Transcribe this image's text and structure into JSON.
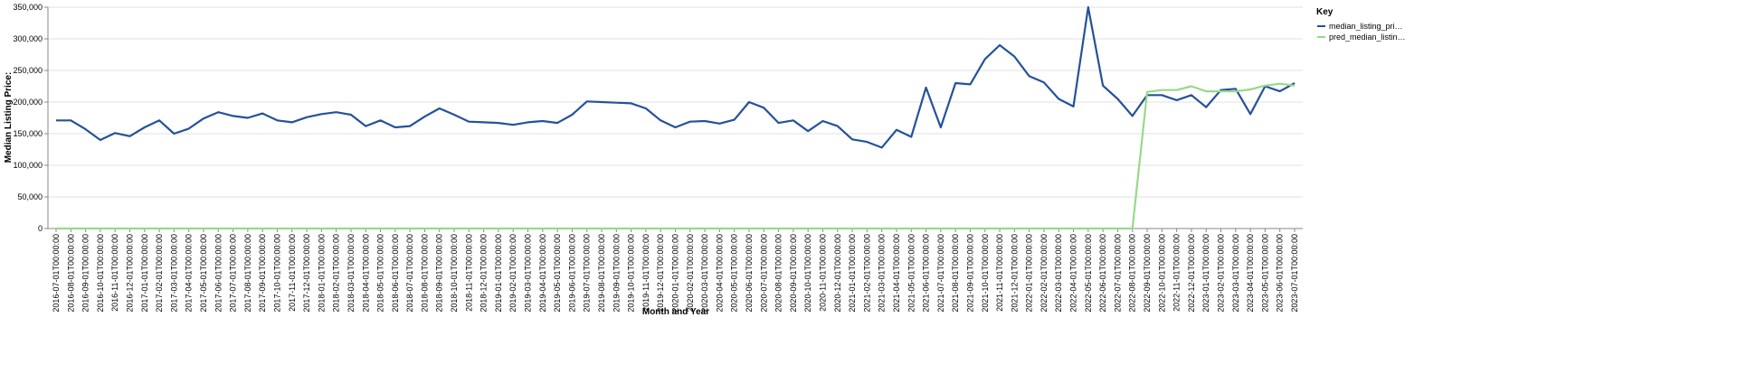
{
  "chart_data": {
    "type": "line",
    "x_label": "Month and Year",
    "y_label": "Median Listing Price:",
    "legend_title": "Key",
    "legend_position": "right",
    "grid": true,
    "categories": [
      "2016-07-01T00:00:00",
      "2016-08-01T00:00:00",
      "2016-09-01T00:00:00",
      "2016-10-01T00:00:00",
      "2016-11-01T00:00:00",
      "2016-12-01T00:00:00",
      "2017-01-01T00:00:00",
      "2017-02-01T00:00:00",
      "2017-03-01T00:00:00",
      "2017-04-01T00:00:00",
      "2017-05-01T00:00:00",
      "2017-06-01T00:00:00",
      "2017-07-01T00:00:00",
      "2017-08-01T00:00:00",
      "2017-09-01T00:00:00",
      "2017-10-01T00:00:00",
      "2017-11-01T00:00:00",
      "2017-12-01T00:00:00",
      "2018-01-01T00:00:00",
      "2018-02-01T00:00:00",
      "2018-03-01T00:00:00",
      "2018-04-01T00:00:00",
      "2018-05-01T00:00:00",
      "2018-06-01T00:00:00",
      "2018-07-01T00:00:00",
      "2018-08-01T00:00:00",
      "2018-09-01T00:00:00",
      "2018-10-01T00:00:00",
      "2018-11-01T00:00:00",
      "2018-12-01T00:00:00",
      "2019-01-01T00:00:00",
      "2019-02-01T00:00:00",
      "2019-03-01T00:00:00",
      "2019-04-01T00:00:00",
      "2019-05-01T00:00:00",
      "2019-06-01T00:00:00",
      "2019-07-01T00:00:00",
      "2019-08-01T00:00:00",
      "2019-09-01T00:00:00",
      "2019-10-01T00:00:00",
      "2019-11-01T00:00:00",
      "2019-12-01T00:00:00",
      "2020-01-01T00:00:00",
      "2020-02-01T00:00:00",
      "2020-03-01T00:00:00",
      "2020-04-01T00:00:00",
      "2020-05-01T00:00:00",
      "2020-06-01T00:00:00",
      "2020-07-01T00:00:00",
      "2020-08-01T00:00:00",
      "2020-09-01T00:00:00",
      "2020-10-01T00:00:00",
      "2020-11-01T00:00:00",
      "2020-12-01T00:00:00",
      "2021-01-01T00:00:00",
      "2021-02-01T00:00:00",
      "2021-03-01T00:00:00",
      "2021-04-01T00:00:00",
      "2021-05-01T00:00:00",
      "2021-06-01T00:00:00",
      "2021-07-01T00:00:00",
      "2021-08-01T00:00:00",
      "2021-09-01T00:00:00",
      "2021-10-01T00:00:00",
      "2021-11-01T00:00:00",
      "2021-12-01T00:00:00",
      "2022-01-01T00:00:00",
      "2022-02-01T00:00:00",
      "2022-03-01T00:00:00",
      "2022-04-01T00:00:00",
      "2022-05-01T00:00:00",
      "2022-06-01T00:00:00",
      "2022-07-01T00:00:00",
      "2022-08-01T00:00:00",
      "2022-09-01T00:00:00",
      "2022-10-01T00:00:00",
      "2022-11-01T00:00:00",
      "2022-12-01T00:00:00",
      "2023-01-01T00:00:00",
      "2023-02-01T00:00:00",
      "2023-03-01T00:00:00",
      "2023-04-01T00:00:00",
      "2023-05-01T00:00:00",
      "2023-06-01T00:00:00",
      "2023-07-01T00:00:00"
    ],
    "series": [
      {
        "name": "median_listing_pri…",
        "color": "#24529a",
        "values": [
          171000,
          171000,
          157000,
          140000,
          151000,
          146000,
          160000,
          171000,
          150000,
          158000,
          174000,
          184000,
          178000,
          175000,
          182000,
          171000,
          168000,
          176000,
          181000,
          184000,
          180000,
          162000,
          171000,
          160000,
          162000,
          177000,
          190000,
          180000,
          169000,
          168000,
          167000,
          164000,
          168000,
          170000,
          167000,
          180000,
          201000,
          200000,
          199000,
          198000,
          190000,
          171000,
          160000,
          169000,
          170000,
          166000,
          172000,
          200000,
          191000,
          167000,
          171000,
          154000,
          170000,
          162000,
          141000,
          137000,
          128000,
          156000,
          145000,
          223000,
          160000,
          230000,
          228000,
          268000,
          290000,
          272000,
          241000,
          231000,
          205000,
          193000,
          350000,
          226000,
          205000,
          178000,
          211000,
          211000,
          203000,
          211000,
          192000,
          219000,
          221000,
          181000,
          225000,
          217000,
          230000
        ]
      },
      {
        "name": "pred_median_listin…",
        "color": "#98d98a",
        "values": [
          0,
          0,
          0,
          0,
          0,
          0,
          0,
          0,
          0,
          0,
          0,
          0,
          0,
          0,
          0,
          0,
          0,
          0,
          0,
          0,
          0,
          0,
          0,
          0,
          0,
          0,
          0,
          0,
          0,
          0,
          0,
          0,
          0,
          0,
          0,
          0,
          0,
          0,
          0,
          0,
          0,
          0,
          0,
          0,
          0,
          0,
          0,
          0,
          0,
          0,
          0,
          0,
          0,
          0,
          0,
          0,
          0,
          0,
          0,
          0,
          0,
          0,
          0,
          0,
          0,
          0,
          0,
          0,
          0,
          0,
          0,
          0,
          0,
          0,
          216000,
          219000,
          219000,
          225000,
          217000,
          217000,
          217000,
          220000,
          226000,
          229000,
          226000
        ]
      }
    ],
    "ylim": [
      0,
      350000
    ],
    "yticks": [
      0,
      {
        "value": 50000,
        "label": "50,000"
      },
      {
        "value": 100000,
        "label": "100,000"
      },
      {
        "value": 150000,
        "label": "150,000"
      },
      {
        "value": 200000,
        "label": "200,000"
      },
      {
        "value": 250000,
        "label": "250,000"
      },
      {
        "value": 300000,
        "label": "300,000"
      },
      {
        "value": 350000,
        "label": "350,000"
      }
    ]
  }
}
